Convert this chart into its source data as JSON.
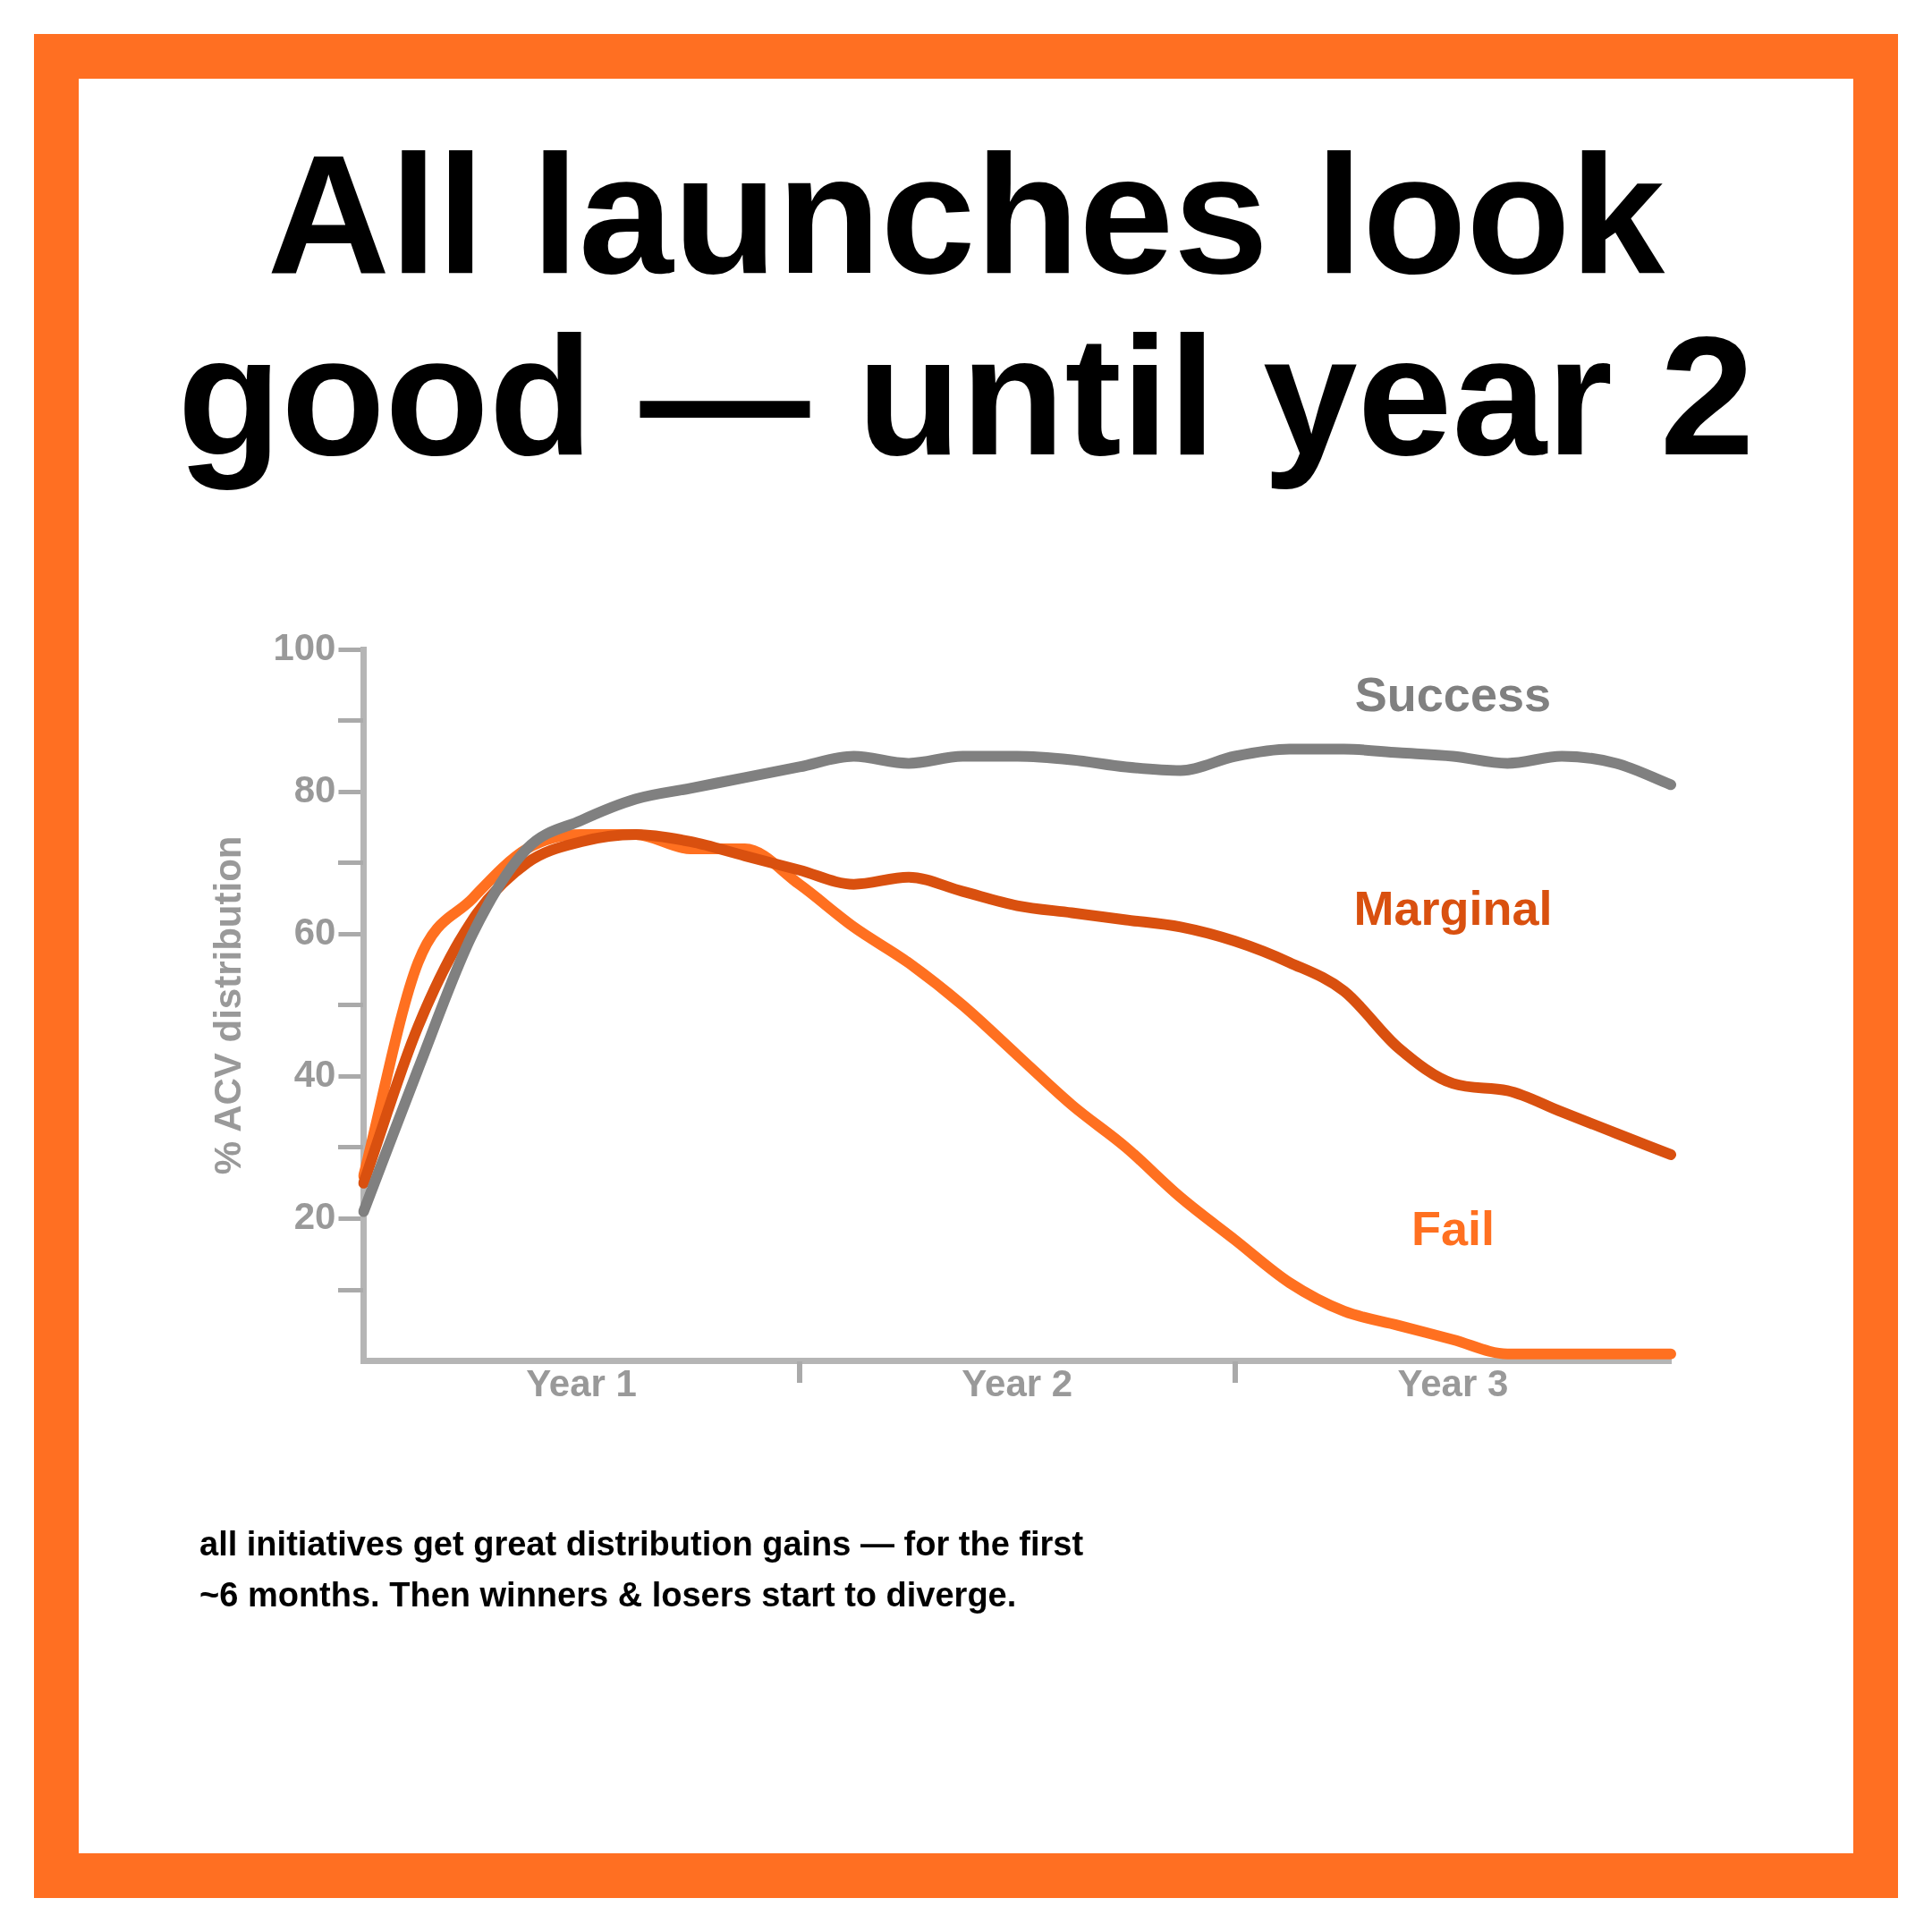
{
  "chart_data": {
    "type": "line",
    "title": "All launches look good — until year 2",
    "ylabel": "% ACV distribution",
    "annotations": [
      "all initiatives get great distribution gains — for the first ~6 months. Then winners & losers start to diverge."
    ],
    "categories": [
      null,
      null,
      null,
      null,
      "Year 1",
      null,
      null,
      null,
      null,
      null,
      null,
      null,
      "Year 2",
      null,
      null,
      null,
      null,
      null,
      null,
      null,
      "Year 3",
      null,
      null,
      null,
      null
    ],
    "ylim": [
      0,
      100
    ],
    "yticks": [
      20,
      40,
      60,
      80,
      100
    ],
    "legend": false,
    "marker": "none",
    "line_style": "solid",
    "series": [
      {
        "name": "Success",
        "color": "#808080",
        "values": [
          21,
          41,
          60,
          72,
          76,
          79,
          80.5,
          82,
          83.5,
          85,
          84,
          85,
          85,
          84.5,
          83.5,
          83,
          85,
          86,
          86,
          85.5,
          85,
          84,
          85,
          84,
          81
        ]
      },
      {
        "name": "Marginal",
        "color": "#d9500f",
        "values": [
          25,
          47,
          62,
          70,
          73,
          74,
          73,
          71,
          69,
          67,
          68,
          66,
          64,
          63,
          62,
          61,
          59,
          56,
          52,
          44,
          39,
          38,
          35,
          32,
          29
        ]
      },
      {
        "name": "Fail",
        "color": "#ff7020",
        "values": [
          26,
          56,
          65,
          72,
          74,
          74,
          72,
          72,
          67,
          61,
          56,
          50,
          43,
          36,
          30,
          23,
          17,
          11,
          7,
          5,
          3,
          1,
          1,
          1,
          1
        ]
      }
    ]
  }
}
